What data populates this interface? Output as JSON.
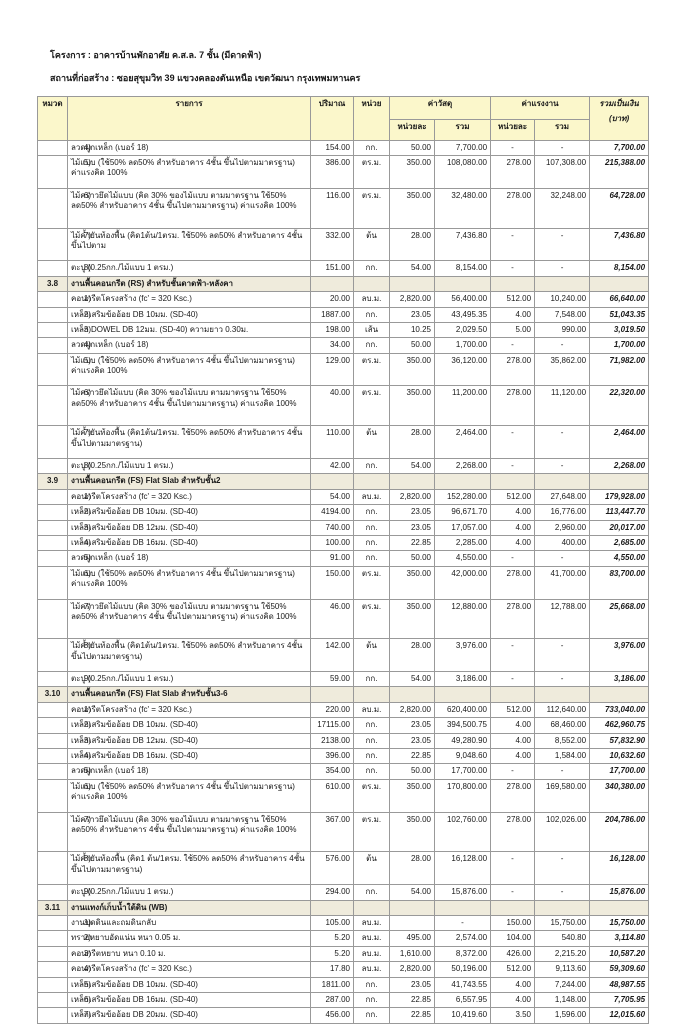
{
  "page": {
    "project_label": "โครงการ : อาคารบ้านพักอาศัย ค.ส.ล. 7 ชั้น (มีดาดฟ้า)",
    "location_label": "สถานที่ก่อสร้าง : ซอยสุขุมวิท 39 แขวงคลองตันเหนือ เขตวัฒนา กรุงเทพมหานคร"
  },
  "table": {
    "colors": {
      "header_bg": "#FBF7CB",
      "section_bg": "#EFEBDC",
      "border": "#999999",
      "text": "#1a1a1a"
    },
    "headers": {
      "section": "หมวด",
      "description": "รายการ",
      "quantity": "ปริมาณ",
      "unit": "หน่วย",
      "material": "ค่าวัสดุ",
      "labor": "ค่าแรงงาน",
      "unit_price": "หน่วยละ",
      "total": "รวม",
      "grand_total_line1": "รวมเป็นเงิน",
      "grand_total_line2": "(บาท)"
    },
    "sections": [
      {
        "no": "",
        "title": "",
        "items": [
          {
            "no": "4)",
            "desc": "ลวดผูกเหล็ก (เบอร์ 18)",
            "qty": "154.00",
            "unit": "กก.",
            "mat_unit": "50.00",
            "mat_total": "7,700.00",
            "lab_unit": "-",
            "lab_total": "-",
            "total": "7,700.00"
          },
          {
            "no": "5)",
            "desc": "ไม้แบบ (ใช้50% ลด50% สำหรับอาคาร 4ชั้น ขึ้นไปตามมาตรฐาน) ค่าแรงคิด 100%",
            "qty": "386.00",
            "unit": "ตร.ม.",
            "mat_unit": "350.00",
            "mat_total": "108,080.00",
            "lab_unit": "278.00",
            "lab_total": "107,308.00",
            "total": "215,388.00"
          },
          {
            "no": "6)",
            "desc": "ไม้คร่าวยึดไม้แบบ (คิด 30% ของไม้แบบ ตามมาตรฐาน ใช้50% ลด50% สำหรับอาคาร 4ชั้น ขึ้นไปตามมาตรฐาน) ค่าแรงคิด 100%",
            "qty": "116.00",
            "unit": "ตร.ม.",
            "mat_unit": "350.00",
            "mat_total": "32,480.00",
            "lab_unit": "278.00",
            "lab_total": "32,248.00",
            "total": "64,728.00"
          },
          {
            "no": "7)",
            "desc": "ไม้ค้ำยันท้องพื้น (คิด1ต้น/1ตรม. ใช้50% ลด50% สำหรับอาคาร 4ชั้น ขึ้นไปตาม",
            "qty": "332.00",
            "unit": "ต้น",
            "mat_unit": "28.00",
            "mat_total": "7,436.80",
            "lab_unit": "-",
            "lab_total": "-",
            "total": "7,436.80"
          },
          {
            "no": "8)",
            "desc": "ตะปู (0.25กก./ไม้แบบ 1 ตรม.)",
            "qty": "151.00",
            "unit": "กก.",
            "mat_unit": "54.00",
            "mat_total": "8,154.00",
            "lab_unit": "-",
            "lab_total": "-",
            "total": "8,154.00"
          }
        ]
      },
      {
        "no": "3.8",
        "title": "งานพื้นคอนกรีต (RS) สำหรับชั้นดาดฟ้า-หลังคา",
        "items": [
          {
            "no": "1)",
            "desc": "คอนกรีตโครงสร้าง (fc' = 320 Ksc.)",
            "qty": "20.00",
            "unit": "ลบ.ม.",
            "mat_unit": "2,820.00",
            "mat_total": "56,400.00",
            "lab_unit": "512.00",
            "lab_total": "10,240.00",
            "total": "66,640.00"
          },
          {
            "no": "2)",
            "desc": "เหล็กเสริมข้ออ้อย DB 10มม. (SD-40)",
            "qty": "1887.00",
            "unit": "กก.",
            "mat_unit": "23.05",
            "mat_total": "43,495.35",
            "lab_unit": "4.00",
            "lab_total": "7,548.00",
            "total": "51,043.35"
          },
          {
            "no": "3)",
            "desc": "เหล็ก DOWEL DB 12มม. (SD-40) ความยาว 0.30ม.",
            "qty": "198.00",
            "unit": "เส้น",
            "mat_unit": "10.25",
            "mat_total": "2,029.50",
            "lab_unit": "5.00",
            "lab_total": "990.00",
            "total": "3,019.50"
          },
          {
            "no": "4)",
            "desc": "ลวดผูกเหล็ก (เบอร์ 18)",
            "qty": "34.00",
            "unit": "กก.",
            "mat_unit": "50.00",
            "mat_total": "1,700.00",
            "lab_unit": "-",
            "lab_total": "-",
            "total": "1,700.00"
          },
          {
            "no": "5)",
            "desc": "ไม้แบบ (ใช้50% ลด50% สำหรับอาคาร 4ชั้น ขึ้นไปตามมาตรฐาน) ค่าแรงคิด 100%",
            "qty": "129.00",
            "unit": "ตร.ม.",
            "mat_unit": "350.00",
            "mat_total": "36,120.00",
            "lab_unit": "278.00",
            "lab_total": "35,862.00",
            "total": "71,982.00"
          },
          {
            "no": "6)",
            "desc": "ไม้คร่าวยึดไม้แบบ (คิด 30% ของไม้แบบ ตามมาตรฐาน ใช้50% ลด50% สำหรับอาคาร 4ชั้น ขึ้นไปตามมาตรฐาน) ค่าแรงคิด 100%",
            "qty": "40.00",
            "unit": "ตร.ม.",
            "mat_unit": "350.00",
            "mat_total": "11,200.00",
            "lab_unit": "278.00",
            "lab_total": "11,120.00",
            "total": "22,320.00"
          },
          {
            "no": "7)",
            "desc": "ไม้ค้ำยันท้องพื้น (คิด1ต้น/1ตรม. ใช้50% ลด50% สำหรับอาคาร 4ชั้น ขึ้นไปตามมาตรฐาน)",
            "qty": "110.00",
            "unit": "ต้น",
            "mat_unit": "28.00",
            "mat_total": "2,464.00",
            "lab_unit": "-",
            "lab_total": "-",
            "total": "2,464.00"
          },
          {
            "no": "8)",
            "desc": "ตะปู (0.25กก./ไม้แบบ 1 ตรม.)",
            "qty": "42.00",
            "unit": "กก.",
            "mat_unit": "54.00",
            "mat_total": "2,268.00",
            "lab_unit": "-",
            "lab_total": "-",
            "total": "2,268.00"
          }
        ]
      },
      {
        "no": "3.9",
        "title": "งานพื้นคอนกรีต (FS) Flat Slab สำหรับชั้น2",
        "items": [
          {
            "no": "1)",
            "desc": "คอนกรีตโครงสร้าง (fc' = 320 Ksc.)",
            "qty": "54.00",
            "unit": "ลบ.ม.",
            "mat_unit": "2,820.00",
            "mat_total": "152,280.00",
            "lab_unit": "512.00",
            "lab_total": "27,648.00",
            "total": "179,928.00"
          },
          {
            "no": "2)",
            "desc": "เหล็กเสริมข้ออ้อย DB 10มม. (SD-40)",
            "qty": "4194.00",
            "unit": "กก.",
            "mat_unit": "23.05",
            "mat_total": "96,671.70",
            "lab_unit": "4.00",
            "lab_total": "16,776.00",
            "total": "113,447.70"
          },
          {
            "no": "3)",
            "desc": "เหล็กเสริมข้ออ้อย DB 12มม. (SD-40)",
            "qty": "740.00",
            "unit": "กก.",
            "mat_unit": "23.05",
            "mat_total": "17,057.00",
            "lab_unit": "4.00",
            "lab_total": "2,960.00",
            "total": "20,017.00"
          },
          {
            "no": "4)",
            "desc": "เหล็กเสริมข้ออ้อย DB 16มม. (SD-40)",
            "qty": "100.00",
            "unit": "กก.",
            "mat_unit": "22.85",
            "mat_total": "2,285.00",
            "lab_unit": "4.00",
            "lab_total": "400.00",
            "total": "2,685.00"
          },
          {
            "no": "5)",
            "desc": "ลวดผูกเหล็ก (เบอร์ 18)",
            "qty": "91.00",
            "unit": "กก.",
            "mat_unit": "50.00",
            "mat_total": "4,550.00",
            "lab_unit": "-",
            "lab_total": "-",
            "total": "4,550.00"
          },
          {
            "no": "6)",
            "desc": "ไม้แบบ (ใช้50% ลด50% สำหรับอาคาร 4ชั้น ขึ้นไปตามมาตรฐาน) ค่าแรงคิด 100%",
            "qty": "150.00",
            "unit": "ตร.ม.",
            "mat_unit": "350.00",
            "mat_total": "42,000.00",
            "lab_unit": "278.00",
            "lab_total": "41,700.00",
            "total": "83,700.00"
          },
          {
            "no": "7)",
            "desc": "ไม้คร่าวยึดไม้แบบ (คิด 30% ของไม้แบบ ตามมาตรฐาน ใช้50% ลด50% สำหรับอาคาร 4ชั้น ขึ้นไปตามมาตรฐาน) ค่าแรงคิด 100%",
            "qty": "46.00",
            "unit": "ตร.ม.",
            "mat_unit": "350.00",
            "mat_total": "12,880.00",
            "lab_unit": "278.00",
            "lab_total": "12,788.00",
            "total": "25,668.00"
          },
          {
            "no": "8)",
            "desc": "ไม้ค้ำยันท้องพื้น (คิด1ต้น/1ตรม. ใช้50% ลด50% สำหรับอาคาร 4ชั้น ขึ้นไปตามมาตรฐาน)",
            "qty": "142.00",
            "unit": "ต้น",
            "mat_unit": "28.00",
            "mat_total": "3,976.00",
            "lab_unit": "-",
            "lab_total": "-",
            "total": "3,976.00"
          },
          {
            "no": "9)",
            "desc": "ตะปู (0.25กก./ไม้แบบ 1 ตรม.)",
            "qty": "59.00",
            "unit": "กก.",
            "mat_unit": "54.00",
            "mat_total": "3,186.00",
            "lab_unit": "-",
            "lab_total": "-",
            "total": "3,186.00"
          }
        ]
      },
      {
        "no": "3.10",
        "title": "งานพื้นคอนกรีต (FS) Flat Slab สำหรับชั้น3-6",
        "items": [
          {
            "no": "1)",
            "desc": "คอนกรีตโครงสร้าง (fc' = 320 Ksc.)",
            "qty": "220.00",
            "unit": "ลบ.ม.",
            "mat_unit": "2,820.00",
            "mat_total": "620,400.00",
            "lab_unit": "512.00",
            "lab_total": "112,640.00",
            "total": "733,040.00"
          },
          {
            "no": "2)",
            "desc": "เหล็กเสริมข้ออ้อย DB 10มม. (SD-40)",
            "qty": "17115.00",
            "unit": "กก.",
            "mat_unit": "23.05",
            "mat_total": "394,500.75",
            "lab_unit": "4.00",
            "lab_total": "68,460.00",
            "total": "462,960.75"
          },
          {
            "no": "3)",
            "desc": "เหล็กเสริมข้ออ้อย DB 12มม. (SD-40)",
            "qty": "2138.00",
            "unit": "กก.",
            "mat_unit": "23.05",
            "mat_total": "49,280.90",
            "lab_unit": "4.00",
            "lab_total": "8,552.00",
            "total": "57,832.90"
          },
          {
            "no": "4)",
            "desc": "เหล็กเสริมข้ออ้อย DB 16มม. (SD-40)",
            "qty": "396.00",
            "unit": "กก.",
            "mat_unit": "22.85",
            "mat_total": "9,048.60",
            "lab_unit": "4.00",
            "lab_total": "1,584.00",
            "total": "10,632.60"
          },
          {
            "no": "5)",
            "desc": "ลวดผูกเหล็ก (เบอร์ 18)",
            "qty": "354.00",
            "unit": "กก.",
            "mat_unit": "50.00",
            "mat_total": "17,700.00",
            "lab_unit": "-",
            "lab_total": "-",
            "total": "17,700.00"
          },
          {
            "no": "6)",
            "desc": "ไม้แบบ (ใช้50% ลด50% สำหรับอาคาร 4ชั้น ขึ้นไปตามมาตรฐาน) ค่าแรงคิด 100%",
            "qty": "610.00",
            "unit": "ตร.ม.",
            "mat_unit": "350.00",
            "mat_total": "170,800.00",
            "lab_unit": "278.00",
            "lab_total": "169,580.00",
            "total": "340,380.00"
          },
          {
            "no": "7)",
            "desc": "ไม้คร่าวยึดไม้แบบ (คิด 30% ของไม้แบบ ตามมาตรฐาน ใช้50% ลด50% สำหรับอาคาร 4ชั้น ขึ้นไปตามมาตรฐาน) ค่าแรงคิด 100%",
            "qty": "367.00",
            "unit": "ตร.ม.",
            "mat_unit": "350.00",
            "mat_total": "102,760.00",
            "lab_unit": "278.00",
            "lab_total": "102,026.00",
            "total": "204,786.00"
          },
          {
            "no": "8)",
            "desc": "ไม้ค้ำยันท้องพื้น (คิด1 ต้น/1ตรม. ใช้50% ลด50% สำหรับอาคาร 4ชั้น ขึ้นไปตามมาตรฐาน)",
            "qty": "576.00",
            "unit": "ต้น",
            "mat_unit": "28.00",
            "mat_total": "16,128.00",
            "lab_unit": "-",
            "lab_total": "-",
            "total": "16,128.00"
          },
          {
            "no": "9)",
            "desc": "ตะปู (0.25กก./ไม้แบบ 1 ตรม.)",
            "qty": "294.00",
            "unit": "กก.",
            "mat_unit": "54.00",
            "mat_total": "15,876.00",
            "lab_unit": "-",
            "lab_total": "-",
            "total": "15,876.00"
          }
        ]
      },
      {
        "no": "3.11",
        "title": "งานแทงก์เก็บน้ำใต้ดิน (WB)",
        "items": [
          {
            "no": "1)",
            "desc": "งานขุดดินและถมดินกลับ",
            "qty": "105.00",
            "unit": "ลบ.ม.",
            "mat_unit": "",
            "mat_total": "-",
            "lab_unit": "150.00",
            "lab_total": "15,750.00",
            "total": "15,750.00"
          },
          {
            "no": "2)",
            "desc": "ทรายหยาบอัดแน่น หนา 0.05 ม.",
            "qty": "5.20",
            "unit": "ลบ.ม.",
            "mat_unit": "495.00",
            "mat_total": "2,574.00",
            "lab_unit": "104.00",
            "lab_total": "540.80",
            "total": "3,114.80"
          },
          {
            "no": "3)",
            "desc": "คอนกรีตหยาบ หนา 0.10 ม.",
            "qty": "5.20",
            "unit": "ลบ.ม.",
            "mat_unit": "1,610.00",
            "mat_total": "8,372.00",
            "lab_unit": "426.00",
            "lab_total": "2,215.20",
            "total": "10,587.20"
          },
          {
            "no": "4)",
            "desc": "คอนกรีตโครงสร้าง (fc' = 320 Ksc.)",
            "qty": "17.80",
            "unit": "ลบ.ม.",
            "mat_unit": "2,820.00",
            "mat_total": "50,196.00",
            "lab_unit": "512.00",
            "lab_total": "9,113.60",
            "total": "59,309.60"
          },
          {
            "no": "5)",
            "desc": "เหล็กเสริมข้ออ้อย DB 10มม. (SD-40)",
            "qty": "1811.00",
            "unit": "กก.",
            "mat_unit": "23.05",
            "mat_total": "41,743.55",
            "lab_unit": "4.00",
            "lab_total": "7,244.00",
            "total": "48,987.55"
          },
          {
            "no": "6)",
            "desc": "เหล็กเสริมข้ออ้อย DB 16มม. (SD-40)",
            "qty": "287.00",
            "unit": "กก.",
            "mat_unit": "22.85",
            "mat_total": "6,557.95",
            "lab_unit": "4.00",
            "lab_total": "1,148.00",
            "total": "7,705.95"
          },
          {
            "no": "7)",
            "desc": "เหล็กเสริมข้ออ้อย DB 20มม. (SD-40)",
            "qty": "456.00",
            "unit": "กก.",
            "mat_unit": "22.85",
            "mat_total": "10,419.60",
            "lab_unit": "3.50",
            "lab_total": "1,596.00",
            "total": "12,015.60"
          }
        ]
      }
    ]
  }
}
